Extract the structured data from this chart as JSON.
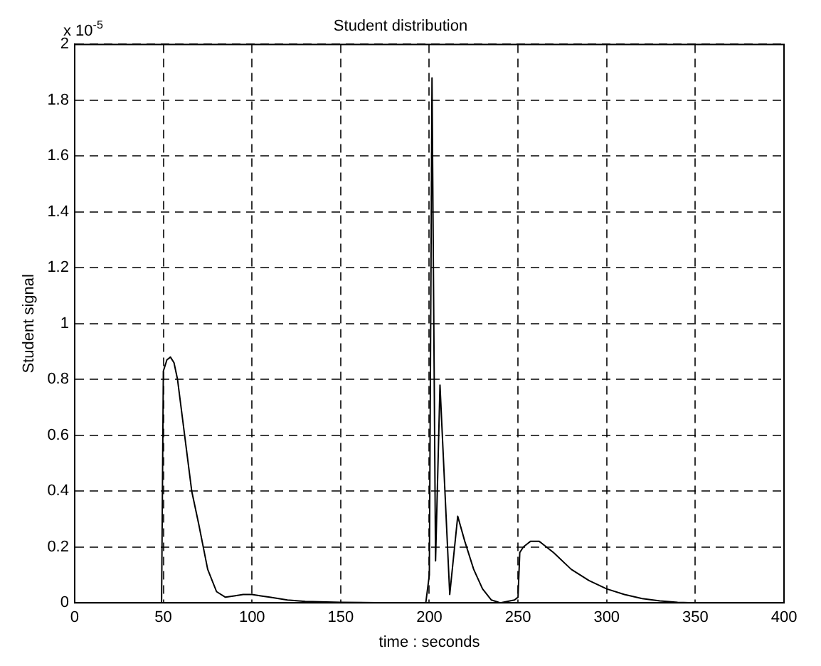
{
  "chart_data": {
    "type": "line",
    "title": "Student distribution",
    "xlabel": "time : seconds",
    "ylabel": "Student signal",
    "annotations": [
      "x 10$^{-5}$"
    ],
    "x": [
      0,
      49,
      50,
      52,
      54,
      56,
      58,
      60,
      63,
      66,
      70,
      75,
      80,
      85,
      90,
      95,
      100,
      105,
      110,
      120,
      130,
      150,
      180,
      198,
      200,
      201.5,
      203.5,
      206,
      211.5,
      216,
      220,
      225,
      230,
      235,
      240,
      248,
      250,
      251,
      253,
      257,
      262,
      270,
      280,
      290,
      300,
      310,
      320,
      330,
      340,
      350,
      400
    ],
    "series": [
      {
        "color": "#000000",
        "values": [
          0,
          0,
          0.83,
          0.87,
          0.88,
          0.86,
          0.8,
          0.7,
          0.55,
          0.4,
          0.28,
          0.12,
          0.04,
          0.02,
          0.025,
          0.03,
          0.03,
          0.025,
          0.02,
          0.01,
          0.005,
          0.002,
          0,
          0,
          0.1,
          1.88,
          0.15,
          0.78,
          0.03,
          0.31,
          0.22,
          0.12,
          0.05,
          0.01,
          0,
          0.01,
          0.02,
          0.18,
          0.2,
          0.22,
          0.22,
          0.18,
          0.12,
          0.08,
          0.05,
          0.03,
          0.015,
          0.007,
          0.002,
          0,
          0
        ]
      }
    ],
    "xlim": [
      0,
      400
    ],
    "xticks": [
      0,
      50,
      100,
      150,
      200,
      250,
      300,
      350,
      400
    ],
    "ylim": [
      0,
      2
    ],
    "yticks": [
      0,
      0.2,
      0.4,
      0.6,
      0.8,
      1,
      1.2,
      1.4,
      1.6,
      1.8,
      2
    ],
    "grid": true,
    "legend": false,
    "marker": "none",
    "line_style": "solid"
  }
}
